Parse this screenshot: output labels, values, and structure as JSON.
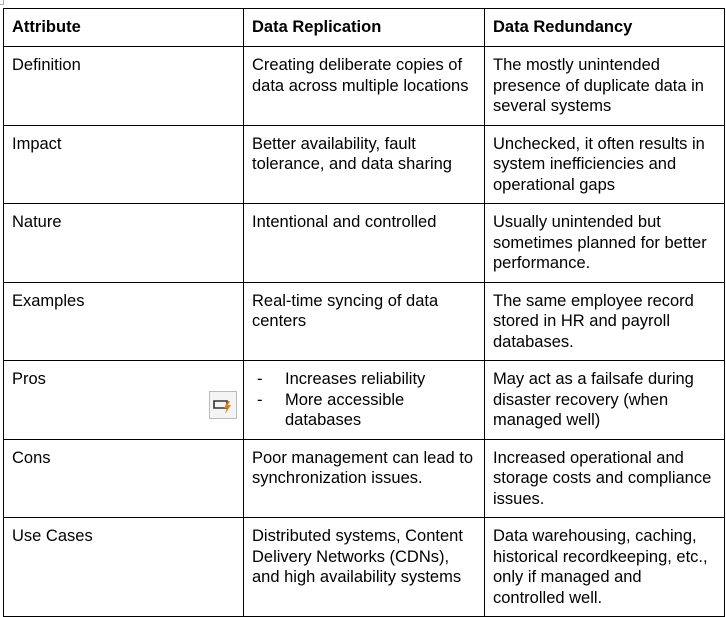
{
  "table": {
    "headers": [
      "Attribute",
      "Data Replication",
      "Data Redundancy"
    ],
    "rows": [
      {
        "attribute": "Definition",
        "replication": "Creating deliberate copies of data across multiple locations",
        "redundancy": "The mostly unintended presence of duplicate data in several systems"
      },
      {
        "attribute": "Impact",
        "replication": "Better availability, fault tolerance, and data sharing",
        "redundancy": "Unchecked, it often results in system inefficiencies and operational gaps"
      },
      {
        "attribute": "Nature",
        "replication": "Intentional and controlled",
        "redundancy": "Usually unintended but sometimes planned for better performance."
      },
      {
        "attribute": "Examples",
        "replication": "Real-time syncing of data centers",
        "redundancy": "The same employee record stored in HR and payroll databases."
      },
      {
        "attribute": "Pros",
        "replication_list": [
          "Increases reliability",
          "More accessible databases"
        ],
        "redundancy": "May act as a failsafe during disaster recovery (when managed well)"
      },
      {
        "attribute": "Cons",
        "replication": "Poor management can lead to synchronization issues.",
        "redundancy": "Increased operational and storage costs and compliance issues."
      },
      {
        "attribute": "Use Cases",
        "replication": "Distributed systems, Content Delivery Networks (CDNs), and high availability systems",
        "redundancy": "Data warehousing, caching, historical recordkeeping, etc., only if managed and controlled well."
      }
    ]
  },
  "icons": {
    "pros_cell_icon": "quick-action-lightning-icon",
    "accent": "#f07800"
  }
}
